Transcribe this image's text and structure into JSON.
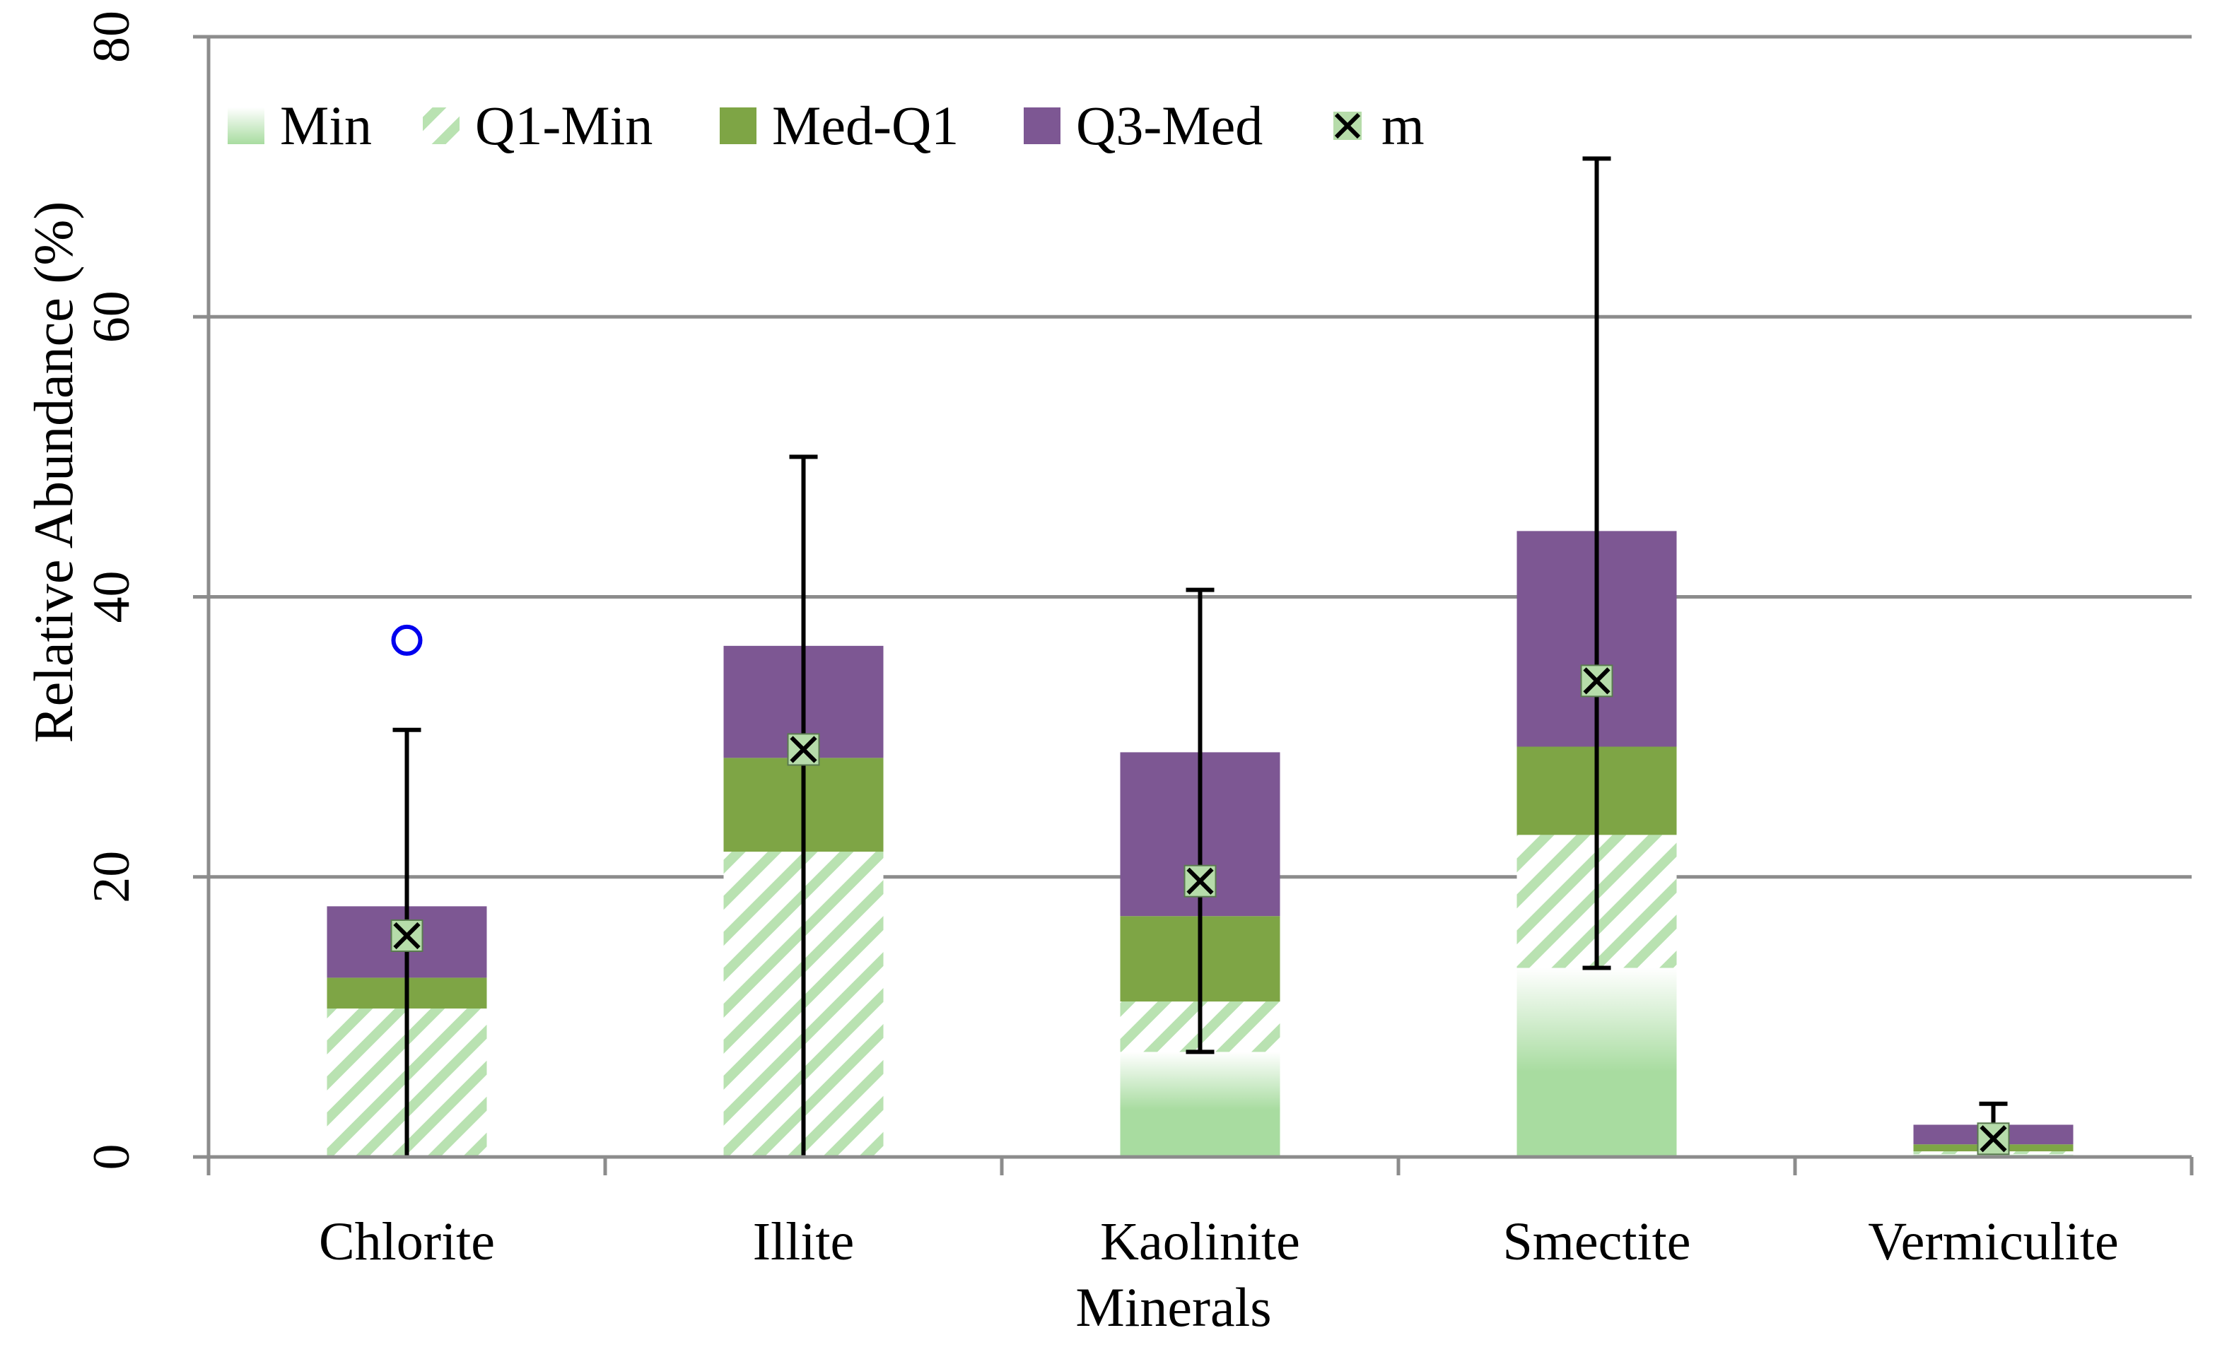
{
  "chart_data": {
    "type": "bar",
    "subtype": "stacked-box-plot",
    "title": "",
    "xlabel": "Minerals",
    "ylabel": "Relative Abundance (%)",
    "ylim": [
      0,
      80
    ],
    "yticks": [
      0,
      20,
      40,
      60,
      80
    ],
    "grid": true,
    "legend_position": "top",
    "categories": [
      "Chlorite",
      "Illite",
      "Kaolinite",
      "Smectite",
      "Vermiculite"
    ],
    "legend": [
      "Min",
      "Q1-Min",
      "Med-Q1",
      "Q3-Med",
      "m"
    ],
    "series": [
      {
        "name": "Min",
        "values": [
          0,
          0,
          7.5,
          13.5,
          0.2
        ]
      },
      {
        "name": "Q1-Min",
        "values": [
          10.6,
          21.8,
          3.6,
          9.5,
          0.2
        ]
      },
      {
        "name": "Med-Q1",
        "values": [
          2.2,
          6.7,
          6.1,
          6.3,
          0.5
        ]
      },
      {
        "name": "Q3-Med",
        "values": [
          5.1,
          8.0,
          11.7,
          15.4,
          1.4
        ]
      }
    ],
    "whisker_max": [
      30.5,
      50.0,
      40.5,
      71.3,
      3.8
    ],
    "mean": [
      15.8,
      29.1,
      19.7,
      34.0,
      1.3
    ],
    "outliers": [
      {
        "category": "Chlorite",
        "value": 36.9
      }
    ],
    "colors": {
      "min": "#a8dca0",
      "q1_min": "#b9e2b1",
      "med_q1": "#7ea545",
      "q3_med": "#7d5793",
      "mean_fill": "#b6dcaa",
      "outlier": "#0000ee",
      "grid": "#8c8c8c"
    }
  }
}
